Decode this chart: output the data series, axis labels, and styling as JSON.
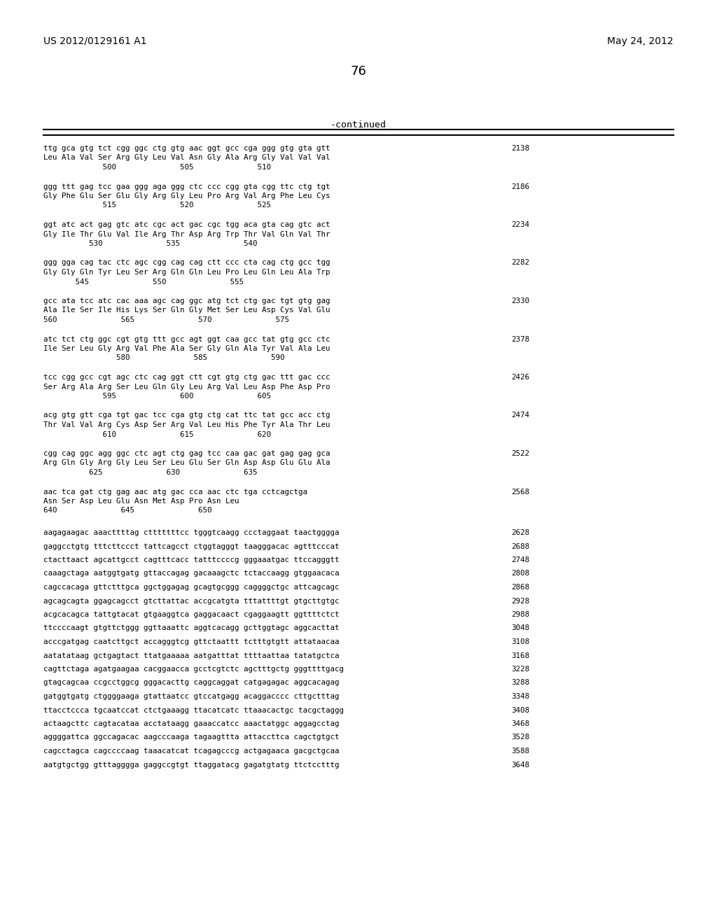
{
  "header_left": "US 2012/0129161 A1",
  "header_right": "May 24, 2012",
  "page_number": "76",
  "continued_label": "-continued",
  "background_color": "#ffffff",
  "text_color": "#000000",
  "font_size_header": 10.0,
  "font_size_page": 13.0,
  "font_size_continued": 9.5,
  "font_size_body": 7.8,
  "sequence_blocks": [
    {
      "dna": "ttg gca gtg tct cgg ggc ctg gtg aac ggt gcc cga ggg gtg gta gtt",
      "aa": "Leu Ala Val Ser Arg Gly Leu Val Asn Gly Ala Arg Gly Val Val Val",
      "nums": "             500              505              510",
      "num_right": "2138"
    },
    {
      "dna": "ggg ttt gag tcc gaa ggg aga ggg ctc ccc cgg gta cgg ttc ctg tgt",
      "aa": "Gly Phe Glu Ser Glu Gly Arg Gly Leu Pro Arg Val Arg Phe Leu Cys",
      "nums": "             515              520              525",
      "num_right": "2186"
    },
    {
      "dna": "ggt atc act gag gtc atc cgc act gac cgc tgg aca gta cag gtc act",
      "aa": "Gly Ile Thr Glu Val Ile Arg Thr Asp Arg Trp Thr Val Gln Val Thr",
      "nums": "          530              535              540",
      "num_right": "2234"
    },
    {
      "dna": "ggg gga cag tac ctc agc cgg cag cag ctt ccc cta cag ctg gcc tgg",
      "aa": "Gly Gly Gln Tyr Leu Ser Arg Gln Gln Leu Pro Leu Gln Leu Ala Trp",
      "nums": "       545              550              555",
      "num_right": "2282"
    },
    {
      "dna": "gcc ata tcc atc cac aaa agc cag ggc atg tct ctg gac tgt gtg gag",
      "aa": "Ala Ile Ser Ile His Lys Ser Gln Gly Met Ser Leu Asp Cys Val Glu",
      "nums": "560              565              570              575",
      "num_right": "2330"
    },
    {
      "dna": "atc tct ctg ggc cgt gtg ttt gcc agt ggt caa gcc tat gtg gcc ctc",
      "aa": "Ile Ser Leu Gly Arg Val Phe Ala Ser Gly Gln Ala Tyr Val Ala Leu",
      "nums": "                580              585              590",
      "num_right": "2378"
    },
    {
      "dna": "tcc cgg gcc cgt agc ctc cag ggt ctt cgt gtg ctg gac ttt gac ccc",
      "aa": "Ser Arg Ala Arg Ser Leu Gln Gly Leu Arg Val Leu Asp Phe Asp Pro",
      "nums": "             595              600              605",
      "num_right": "2426"
    },
    {
      "dna": "acg gtg gtt cga tgt gac tcc cga gtg ctg cat ttc tat gcc acc ctg",
      "aa": "Thr Val Val Arg Cys Asp Ser Arg Val Leu His Phe Tyr Ala Thr Leu",
      "nums": "             610              615              620",
      "num_right": "2474"
    },
    {
      "dna": "cgg cag ggc agg ggc ctc agt ctg gag tcc caa gac gat gag gag gca",
      "aa": "Arg Gln Gly Arg Gly Leu Ser Leu Glu Ser Gln Asp Asp Glu Glu Ala",
      "nums": "          625              630              635",
      "num_right": "2522"
    },
    {
      "dna": "aac tca gat ctg gag aac atg gac cca aac ctc tga cctcagctga",
      "aa": "Asn Ser Asp Leu Glu Asn Met Asp Pro Asn Leu",
      "nums": "640              645              650",
      "num_right": "2568"
    }
  ],
  "plain_lines": [
    {
      "text": "aagagaagac aaacttttag ctttttttcc tgggtcaagg ccctaggaat taactgggga",
      "num": "2628"
    },
    {
      "text": "gaggcctgtg tttcttccct tattcagcct ctggtagggt taagggacac agtttcccat",
      "num": "2688"
    },
    {
      "text": "ctacttaact agcattgcct cagtttcacc tatttccccg gggaaatgac ttccagggtt",
      "num": "2748"
    },
    {
      "text": "caaagctaga aatggtgatg gttaccagag gacaaagctc tctaccaagg gtggaacaca",
      "num": "2808"
    },
    {
      "text": "cagccacaga gttctttgca ggctggagag gcagtgcggg caggggctgc attcagcagc",
      "num": "2868"
    },
    {
      "text": "agcagcagta ggagcagcct gtcttattac accgcatgta tttattttgt gtgcttgtgc",
      "num": "2928"
    },
    {
      "text": "acgcacagca tattgtacat gtgaaggtca gaggacaact cgaggaagtt ggttttctct",
      "num": "2988"
    },
    {
      "text": "ttccccaagt gtgttctggg ggttaaattc aggtcacagg gcttggtagc aggcacttat",
      "num": "3048"
    },
    {
      "text": "acccgatgag caatcttgct accagggtcg gttctaattt tctttgtgtt attataacaa",
      "num": "3108"
    },
    {
      "text": "aatatataag gctgagtact ttatgaaaaa aatgatttat ttttaattaa tatatgctca",
      "num": "3168"
    },
    {
      "text": "cagttctaga agatgaagaa cacggaacca gcctcgtctc agctttgctg gggttttgacg",
      "num": "3228"
    },
    {
      "text": "gtagcagcaa ccgcctggcg gggacacttg caggcaggat catgagagac aggcacagag",
      "num": "3288"
    },
    {
      "text": "gatggtgatg ctggggaaga gtattaatcc gtccatgagg acaggacccc cttgctttag",
      "num": "3348"
    },
    {
      "text": "ttacctccca tgcaatccat ctctgaaagg ttacatcatc ttaaacactgc tacgctaggg",
      "num": "3408"
    },
    {
      "text": "actaagcttc cagtacataa acctataagg gaaaccatcc aaactatggc aggagcctag",
      "num": "3468"
    },
    {
      "text": "aggggattca ggccagacac aagcccaaga tagaagttta attaccttca cagctgtgct",
      "num": "3528"
    },
    {
      "text": "cagcctagca cagccccaag taaacatcat tcagagcccg actgagaaca gacgctgcaa",
      "num": "3588"
    },
    {
      "text": "aatgtgctgg gtttagggga gaggccgtgt ttaggatacg gagatgtatg ttctcctttg",
      "num": "3648"
    }
  ]
}
